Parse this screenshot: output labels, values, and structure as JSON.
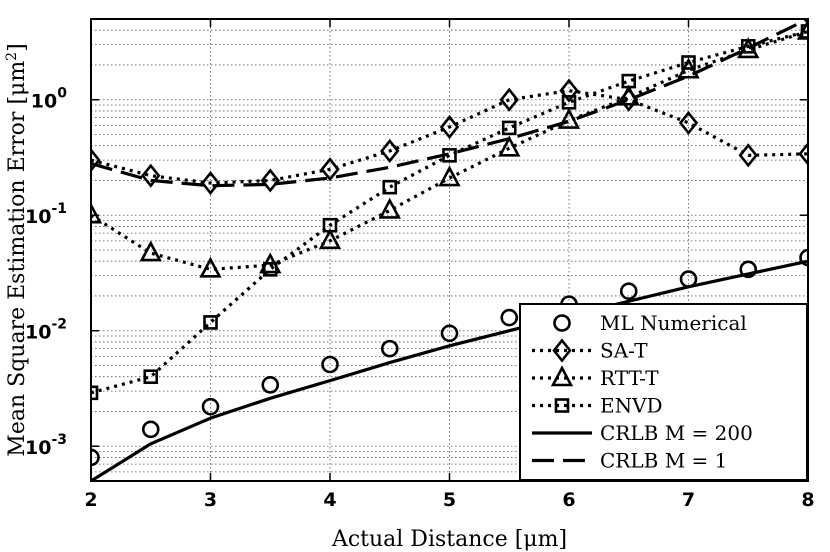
{
  "chart_data": {
    "type": "line",
    "xlabel": "Actual Distance [μm]",
    "ylabel": "Mean Square Estimation Error [μm²]",
    "x_ticks": [
      "2",
      "3",
      "4",
      "5",
      "6",
      "7",
      "8"
    ],
    "y_ticks": [
      {
        "base": "10",
        "exp": "-3",
        "value": 0.001
      },
      {
        "base": "10",
        "exp": "-2",
        "value": 0.01
      },
      {
        "base": "10",
        "exp": "-1",
        "value": 0.1
      },
      {
        "base": "10",
        "exp": "0",
        "value": 1
      }
    ],
    "xlim": [
      2,
      8
    ],
    "ylim": [
      0.0005,
      5
    ],
    "yscale": "log",
    "grid": true,
    "legend_position": "bottom-right",
    "series": [
      {
        "name": "ML Numerical",
        "style": "markers",
        "marker": "circle",
        "x": [
          2,
          2.5,
          3,
          3.5,
          4,
          4.5,
          5,
          5.5,
          6,
          6.5,
          7,
          7.5,
          8
        ],
        "values": [
          0.0008,
          0.0014,
          0.0022,
          0.0034,
          0.0051,
          0.007,
          0.0095,
          0.013,
          0.017,
          0.022,
          0.028,
          0.034,
          0.043
        ]
      },
      {
        "name": "SA-T",
        "style": "dotted",
        "marker": "diamond",
        "x": [
          2,
          2.5,
          3,
          3.5,
          4,
          4.5,
          5,
          5.5,
          6,
          6.5,
          7,
          7.5,
          8
        ],
        "values": [
          0.3,
          0.22,
          0.19,
          0.2,
          0.25,
          0.36,
          0.58,
          1.0,
          1.2,
          1.0,
          0.63,
          0.33,
          0.34
        ]
      },
      {
        "name": "RTT-T",
        "style": "dotted",
        "marker": "triangle",
        "x": [
          2,
          2.5,
          3,
          3.5,
          4,
          4.5,
          5,
          5.5,
          6,
          6.5,
          7,
          7.5,
          8
        ],
        "values": [
          0.1,
          0.047,
          0.034,
          0.037,
          0.06,
          0.11,
          0.21,
          0.38,
          0.66,
          1.05,
          1.8,
          2.7,
          3.9
        ]
      },
      {
        "name": "ENVD",
        "style": "dotted",
        "marker": "square",
        "x": [
          2,
          2.5,
          3,
          3.5,
          4,
          4.5,
          5,
          5.5,
          6,
          6.5,
          7,
          7.5,
          8
        ],
        "values": [
          0.0029,
          0.004,
          0.0118,
          0.034,
          0.082,
          0.175,
          0.33,
          0.57,
          0.95,
          1.45,
          2.1,
          2.9,
          3.9
        ]
      },
      {
        "name": "CRLB M = 200",
        "style": "solid",
        "marker": "none",
        "x": [
          2,
          2.5,
          3,
          3.5,
          4,
          4.5,
          5,
          5.5,
          6,
          6.5,
          7,
          7.5,
          8
        ],
        "values": [
          0.0005,
          0.00105,
          0.00175,
          0.0026,
          0.0037,
          0.0053,
          0.0074,
          0.01,
          0.0135,
          0.018,
          0.024,
          0.031,
          0.04
        ]
      },
      {
        "name": "CRLB M = 1",
        "style": "dashed",
        "marker": "none",
        "x": [
          2,
          2.5,
          3,
          3.5,
          4,
          4.5,
          5,
          5.5,
          6,
          6.5,
          7,
          7.5,
          8
        ],
        "values": [
          0.28,
          0.2,
          0.18,
          0.185,
          0.21,
          0.26,
          0.34,
          0.46,
          0.65,
          1.0,
          1.6,
          2.8,
          5.0
        ]
      }
    ]
  }
}
